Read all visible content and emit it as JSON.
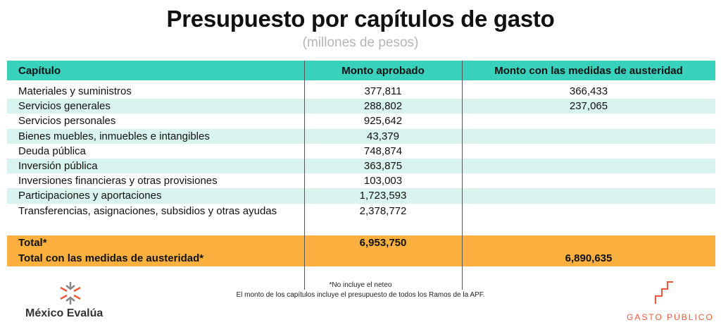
{
  "title": "Presupuesto por capítulos de gasto",
  "subtitle": "(millones de pesos)",
  "table": {
    "headers": [
      "Capítulo",
      "Monto aprobado",
      "Monto con las medidas de austeridad"
    ],
    "rows": [
      [
        "Materiales y suministros",
        "377,811",
        "366,433"
      ],
      [
        "Servicios generales",
        "288,802",
        "237,065"
      ],
      [
        "Servicios personales",
        "925,642",
        ""
      ],
      [
        "Bienes muebles, inmuebles e intangibles",
        "43,379",
        ""
      ],
      [
        "Deuda pública",
        "748,874",
        ""
      ],
      [
        "Inversión pública",
        "363,875",
        ""
      ],
      [
        "Inversiones financieras y otras provisiones",
        "103,003",
        ""
      ],
      [
        "Participaciones y aportaciones",
        "1,723,593",
        ""
      ],
      [
        "Transferencias, asignaciones, subsidios y otras ayudas",
        "2,378,772",
        ""
      ]
    ],
    "total_label": "Total*",
    "total_value": "6,953,750",
    "total_austeridad_label": "Total con las medidas de austeridad*",
    "total_austeridad_value": "6,890,635"
  },
  "footnotes": [
    "*No incluye el neteo",
    "El monto de los capítulos incluye el presupuesto de todos los Ramos de la APF."
  ],
  "logos": {
    "left": "México Evalúa",
    "right": "GASTO PÚBLICO"
  },
  "colors": {
    "header": "#38d1bc",
    "tint": "#d9f3ef",
    "total": "#fbb040",
    "brand": "#f05a3c"
  }
}
